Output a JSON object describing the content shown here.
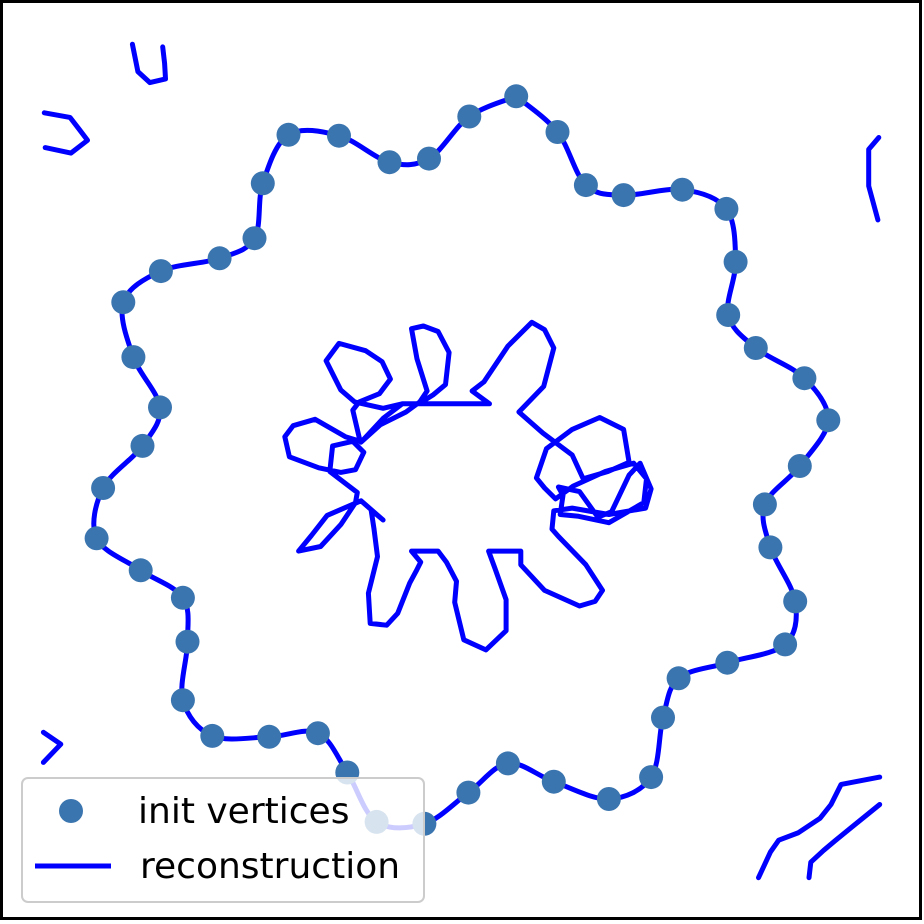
{
  "chart_data": {
    "type": "scatter",
    "title": "",
    "xlabel": "",
    "ylabel": "",
    "axes": "off",
    "grid": false,
    "xlim": [
      0,
      100
    ],
    "ylim": [
      0,
      100
    ],
    "legend": {
      "placement": "lower-left",
      "entries": [
        "init vertices",
        "reconstruction"
      ]
    },
    "colors": {
      "init_vertices": "#3b75af",
      "reconstruction": "#0000ff",
      "frame": "#000000",
      "legend_border": "#cccccc"
    },
    "series": [
      {
        "name": "init vertices",
        "kind": "scatter",
        "points": [
          [
            55.9,
            89.8
          ],
          [
            60.4,
            85.9
          ],
          [
            63.5,
            80.1
          ],
          [
            67.6,
            79.0
          ],
          [
            74.0,
            79.6
          ],
          [
            78.8,
            77.5
          ],
          [
            79.8,
            71.7
          ],
          [
            79.0,
            65.9
          ],
          [
            82.0,
            62.3
          ],
          [
            87.3,
            59.0
          ],
          [
            89.9,
            54.4
          ],
          [
            86.8,
            49.4
          ],
          [
            83.0,
            45.2
          ],
          [
            83.6,
            40.5
          ],
          [
            86.3,
            34.6
          ],
          [
            85.2,
            29.9
          ],
          [
            78.9,
            27.9
          ],
          [
            73.6,
            26.2
          ],
          [
            71.9,
            21.9
          ],
          [
            70.6,
            15.4
          ],
          [
            66.0,
            13.0
          ],
          [
            60.0,
            14.9
          ],
          [
            55.0,
            16.9
          ],
          [
            50.7,
            13.7
          ],
          [
            45.9,
            10.3
          ],
          [
            40.7,
            10.5
          ],
          [
            37.5,
            15.9
          ],
          [
            34.3,
            20.2
          ],
          [
            29.0,
            19.8
          ],
          [
            22.8,
            19.9
          ],
          [
            19.6,
            23.8
          ],
          [
            20.1,
            30.2
          ],
          [
            19.6,
            35.0
          ],
          [
            15.0,
            38.0
          ],
          [
            10.2,
            41.5
          ],
          [
            10.9,
            47.0
          ],
          [
            15.2,
            51.6
          ],
          [
            17.1,
            55.8
          ],
          [
            14.2,
            61.3
          ],
          [
            13.1,
            67.3
          ],
          [
            17.2,
            70.7
          ],
          [
            23.6,
            72.1
          ],
          [
            27.4,
            74.3
          ],
          [
            28.3,
            80.3
          ],
          [
            31.1,
            85.6
          ],
          [
            36.6,
            85.5
          ],
          [
            42.1,
            82.6
          ],
          [
            46.4,
            83.0
          ],
          [
            50.8,
            87.6
          ]
        ]
      },
      {
        "name": "reconstruction",
        "kind": "line",
        "paths": [
          [
            [
              55.9,
              89.8
            ],
            [
              60.4,
              85.9
            ],
            [
              63.5,
              80.1
            ],
            [
              67.6,
              79.0
            ],
            [
              74.0,
              79.6
            ],
            [
              78.8,
              77.5
            ],
            [
              79.8,
              71.7
            ],
            [
              79.0,
              65.9
            ],
            [
              82.0,
              62.3
            ],
            [
              87.3,
              59.0
            ],
            [
              89.9,
              54.4
            ],
            [
              86.8,
              49.4
            ],
            [
              83.0,
              45.2
            ],
            [
              83.6,
              40.5
            ],
            [
              86.3,
              34.6
            ],
            [
              85.2,
              29.9
            ],
            [
              78.9,
              27.9
            ],
            [
              73.6,
              26.2
            ],
            [
              71.9,
              21.9
            ],
            [
              70.6,
              15.4
            ],
            [
              66.0,
              13.0
            ],
            [
              60.0,
              14.9
            ],
            [
              55.0,
              16.9
            ],
            [
              50.7,
              13.7
            ],
            [
              45.9,
              10.3
            ],
            [
              40.7,
              10.5
            ],
            [
              37.5,
              15.9
            ],
            [
              34.3,
              20.2
            ],
            [
              29.0,
              19.8
            ],
            [
              22.8,
              19.9
            ],
            [
              19.6,
              23.8
            ],
            [
              20.1,
              30.2
            ],
            [
              19.6,
              35.0
            ],
            [
              15.0,
              38.0
            ],
            [
              10.2,
              41.5
            ],
            [
              10.9,
              47.0
            ],
            [
              15.2,
              51.6
            ],
            [
              17.1,
              55.8
            ],
            [
              14.2,
              61.3
            ],
            [
              13.1,
              67.3
            ],
            [
              17.2,
              70.7
            ],
            [
              23.6,
              72.1
            ],
            [
              27.4,
              74.3
            ],
            [
              28.3,
              80.3
            ],
            [
              31.1,
              85.6
            ],
            [
              36.6,
              85.5
            ],
            [
              42.1,
              82.6
            ],
            [
              46.4,
              83.0
            ],
            [
              50.8,
              87.6
            ],
            [
              55.9,
              89.8
            ]
          ],
          [
            [
              44.5,
              64.4
            ],
            [
              45.1,
              61.1
            ],
            [
              46.2,
              57.6
            ],
            [
              45.4,
              56.4
            ],
            [
              43.9,
              55.3
            ],
            [
              41.1,
              53.9
            ],
            [
              39.0,
              52.0
            ],
            [
              41.4,
              54.6
            ],
            [
              43.5,
              56.2
            ],
            [
              53.0,
              56.2
            ],
            [
              51.1,
              57.6
            ],
            [
              52.4,
              58.6
            ],
            [
              55.0,
              62.5
            ],
            [
              57.6,
              65.1
            ],
            [
              59.0,
              64.3
            ],
            [
              60.0,
              62.3
            ],
            [
              58.9,
              58.1
            ],
            [
              56.2,
              55.3
            ],
            [
              58.8,
              53.0
            ],
            [
              62.0,
              50.6
            ],
            [
              63.2,
              48.0
            ],
            [
              65.9,
              48.8
            ],
            [
              68.2,
              49.8
            ],
            [
              67.6,
              53.4
            ],
            [
              65.0,
              54.7
            ],
            [
              62.0,
              53.4
            ],
            [
              59.2,
              51.3
            ],
            [
              58.1,
              48.1
            ],
            [
              59.0,
              47.0
            ],
            [
              60.2,
              45.8
            ],
            [
              62.1,
              47.2
            ],
            [
              65.6,
              48.8
            ],
            [
              68.7,
              49.7
            ],
            [
              70.1,
              48.0
            ],
            [
              69.8,
              45.4
            ],
            [
              66.0,
              43.2
            ],
            [
              62.7,
              43.9
            ],
            [
              60.7,
              44.1
            ],
            [
              61.0,
              46.2
            ],
            [
              60.5,
              47.1
            ],
            [
              62.8,
              46.6
            ],
            [
              64.8,
              43.8
            ],
            [
              66.3,
              44.4
            ],
            [
              68.2,
              48.4
            ],
            [
              69.4,
              49.7
            ],
            [
              70.6,
              46.9
            ],
            [
              70.0,
              44.8
            ],
            [
              66.0,
              44.1
            ],
            [
              62.0,
              44.8
            ],
            [
              60.0,
              44.5
            ],
            [
              59.8,
              42.5
            ],
            [
              60.5,
              41.7
            ],
            [
              63.5,
              38.6
            ],
            [
              65.3,
              35.8
            ],
            [
              64.5,
              34.6
            ],
            [
              62.8,
              34.1
            ],
            [
              59.0,
              35.8
            ],
            [
              56.4,
              38.6
            ],
            [
              56.4,
              40.1
            ],
            [
              52.9,
              40.1
            ],
            [
              53.6,
              38.2
            ],
            [
              54.8,
              34.8
            ],
            [
              54.8,
              31.4
            ],
            [
              52.6,
              29.3
            ],
            [
              50.2,
              30.4
            ],
            [
              49.2,
              34.5
            ],
            [
              49.4,
              36.8
            ],
            [
              48.3,
              38.9
            ],
            [
              47.4,
              40.1
            ],
            [
              44.5,
              40.1
            ],
            [
              45.5,
              38.9
            ],
            [
              45.0,
              37.9
            ],
            [
              44.3,
              36.6
            ],
            [
              43.0,
              33.3
            ],
            [
              41.8,
              32.0
            ],
            [
              40.0,
              32.2
            ],
            [
              39.8,
              35.5
            ],
            [
              40.8,
              39.5
            ],
            [
              40.4,
              42.6
            ],
            [
              40.1,
              44.6
            ],
            [
              41.4,
              43.5
            ],
            [
              39.0,
              45.6
            ],
            [
              35.3,
              44.0
            ],
            [
              33.6,
              41.8
            ],
            [
              32.2,
              40.1
            ],
            [
              34.6,
              40.6
            ],
            [
              36.8,
              43.0
            ],
            [
              38.4,
              45.4
            ],
            [
              38.6,
              46.5
            ],
            [
              35.6,
              48.8
            ],
            [
              35.9,
              51.6
            ],
            [
              38.1,
              52.1
            ],
            [
              39.3,
              50.9
            ],
            [
              38.4,
              49.0
            ],
            [
              36.8,
              48.7
            ],
            [
              34.4,
              49.2
            ],
            [
              31.2,
              50.4
            ],
            [
              30.7,
              52.6
            ],
            [
              31.6,
              53.8
            ],
            [
              34.0,
              54.5
            ],
            [
              37.3,
              52.6
            ],
            [
              38.9,
              52.1
            ],
            [
              38.1,
              55.5
            ],
            [
              38.8,
              56.4
            ],
            [
              41.0,
              57.3
            ],
            [
              42.2,
              58.9
            ],
            [
              41.3,
              60.8
            ],
            [
              39.5,
              62.0
            ],
            [
              36.6,
              62.8
            ],
            [
              35.2,
              60.9
            ],
            [
              36.8,
              57.7
            ],
            [
              38.3,
              56.4
            ],
            [
              41.4,
              55.7
            ],
            [
              43.5,
              56.2
            ],
            [
              45.3,
              56.2
            ],
            [
              46.9,
              57.2
            ],
            [
              48.2,
              58.3
            ],
            [
              48.6,
              61.8
            ],
            [
              47.4,
              64.1
            ],
            [
              45.8,
              64.7
            ],
            [
              44.5,
              64.4
            ]
          ],
          [
            [
              14.1,
              95.5
            ],
            [
              14.7,
              92.5
            ],
            [
              16.0,
              91.3
            ],
            [
              17.7,
              91.7
            ],
            [
              17.6,
              93.4
            ],
            [
              17.4,
              95.2
            ]
          ],
          [
            [
              4.5,
              88.0
            ],
            [
              7.3,
              87.5
            ],
            [
              8.3,
              86.2
            ],
            [
              9.2,
              85.0
            ],
            [
              7.4,
              83.6
            ],
            [
              4.6,
              84.2
            ]
          ],
          [
            [
              95.4,
              85.3
            ],
            [
              94.3,
              84.0
            ],
            [
              94.3,
              80.0
            ],
            [
              95.3,
              76.3
            ]
          ],
          [
            [
              4.4,
              20.3
            ],
            [
              6.3,
              19.0
            ],
            [
              4.4,
              17.0
            ]
          ],
          [
            [
              82.3,
              4.4
            ],
            [
              83.6,
              7.2
            ],
            [
              84.5,
              8.5
            ],
            [
              86.6,
              9.3
            ],
            [
              89.0,
              10.9
            ],
            [
              90.2,
              12.4
            ],
            [
              91.3,
              14.6
            ],
            [
              95.5,
              15.4
            ]
          ],
          [
            [
              87.8,
              4.4
            ],
            [
              88.0,
              6.1
            ],
            [
              89.4,
              7.4
            ],
            [
              90.6,
              8.4
            ],
            [
              92.3,
              9.8
            ],
            [
              95.5,
              12.4
            ]
          ]
        ]
      }
    ]
  }
}
